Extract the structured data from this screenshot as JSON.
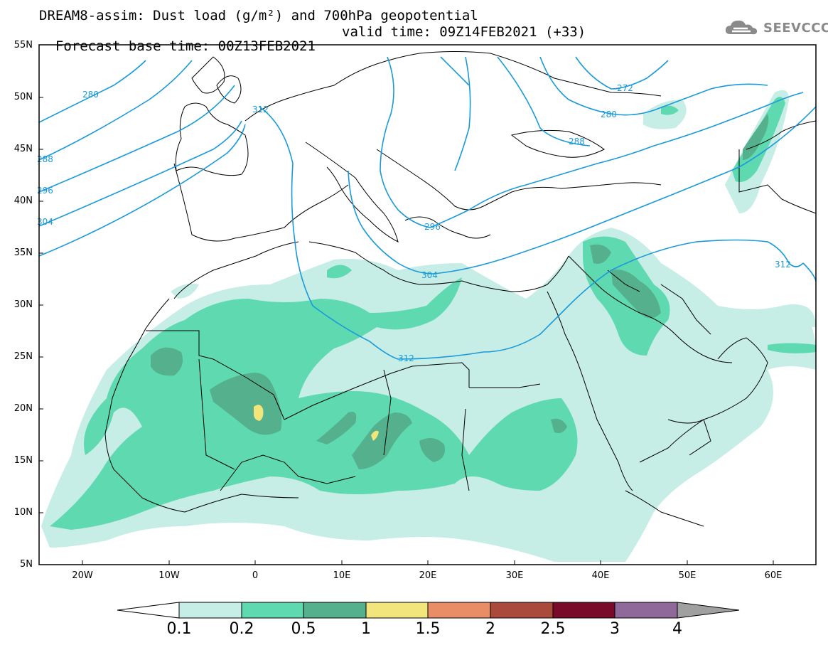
{
  "title": {
    "line1": "DREAM8-assim: Dust load (g/m²) and 700hPa geopotential",
    "base_time": "Forecast base time: 00Z13FEB2021",
    "valid_time": "valid time: 09Z14FEB2021 (+33)"
  },
  "logo": {
    "icon": "cloud-icon",
    "text": "SEEVCCC"
  },
  "axes": {
    "lat_labels": [
      "55N",
      "50N",
      "45N",
      "40N",
      "35N",
      "30N",
      "25N",
      "20N",
      "15N",
      "10N",
      "5N"
    ],
    "lon_labels": [
      "20W",
      "10W",
      "0",
      "10E",
      "20E",
      "30E",
      "40E",
      "50E",
      "60E"
    ]
  },
  "colors": {
    "dust_0_1": "#c6ede6",
    "dust_0_2": "#5fd9b0",
    "dust_0_5": "#54b08d",
    "dust_1": "#f1e57c",
    "dust_1_5": "#e98d66",
    "dust_2": "#aa4a3d",
    "dust_2_5": "#7a0a2a",
    "dust_3": "#8e6999",
    "dust_4": "#a0a0a0",
    "contour": "#1a9ad9",
    "coast": "#000000"
  },
  "contour_labels": [
    {
      "text": "280"
    },
    {
      "text": "288"
    },
    {
      "text": "296"
    },
    {
      "text": "304"
    },
    {
      "text": "312"
    },
    {
      "text": "272"
    },
    {
      "text": "280"
    },
    {
      "text": "288"
    },
    {
      "text": "296"
    },
    {
      "text": "304"
    },
    {
      "text": "312"
    },
    {
      "text": "312"
    }
  ],
  "colorbar": {
    "labels": [
      "0.1",
      "0.2",
      "0.5",
      "1",
      "1.5",
      "2",
      "2.5",
      "3",
      "4"
    ]
  }
}
